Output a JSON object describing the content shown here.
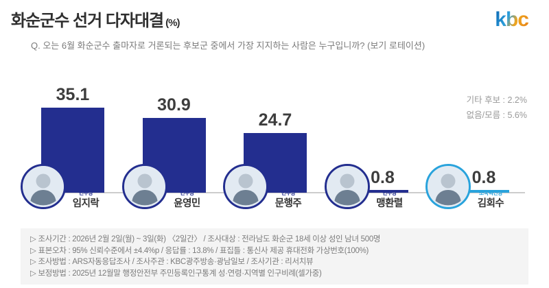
{
  "header": {
    "title": "화순군수 선거 다자대결",
    "title_unit": "(%)",
    "logo": "kbc",
    "question": "Q. 오는 6월 화순군수 출마자로 거론되는 후보군 중에서 가장 지지하는 사람은 누구입니까? (보기 로테이션)"
  },
  "side_notes": {
    "others": "기타 후보 : 2.2%",
    "none": "없음/모름 : 5.6%"
  },
  "candidates": [
    {
      "name": "임지락",
      "party": "민주당",
      "value": "35.1",
      "bar_color": "#232e8f",
      "party_color": "#232e8f"
    },
    {
      "name": "윤영민",
      "party": "민주당",
      "value": "30.9",
      "bar_color": "#232e8f",
      "party_color": "#232e8f"
    },
    {
      "name": "문행주",
      "party": "민주당",
      "value": "24.7",
      "bar_color": "#232e8f",
      "party_color": "#232e8f"
    },
    {
      "name": "맹환렬",
      "party": "민주당",
      "value": "0.8",
      "bar_color": "#232e8f",
      "party_color": "#232e8f"
    },
    {
      "name": "김회수",
      "party": "조국혁신당",
      "value": "0.8",
      "bar_color": "#29a3dc",
      "party_color": "#29a3dc"
    }
  ],
  "footnotes": [
    "▷ 조사기간 : 2026년 2월 2일(월) ~ 3일(화) 〈2일간〉 / 조사대상 : 전라남도 화순군 18세 이상 성인 남녀 500명",
    "▷ 표본오차 : 95% 신뢰수준에서 ±4.4%p / 응답률 : 13.8% / 표집틀 : 통신사 제공 휴대전화 가상번호(100%)",
    "▷ 조사방법 : ARS자동응답조사 / 조사주관 : KBC광주방송·광남일보 / 조사기관 : 리서치뷰",
    "▷ 보정방법 : 2025년 12월말 행정안전부 주민등록인구통계 성·연령·지역별 인구비례(셀가중)"
  ],
  "chart_data": {
    "type": "bar",
    "title": "화순군수 선거 다자대결 (%)",
    "categories": [
      "임지락",
      "윤영민",
      "문행주",
      "맹환렬",
      "김회수"
    ],
    "values": [
      35.1,
      30.9,
      24.7,
      0.8,
      0.8
    ],
    "parties": [
      "민주당",
      "민주당",
      "민주당",
      "민주당",
      "조국혁신당"
    ],
    "bar_colors": [
      "#232e8f",
      "#232e8f",
      "#232e8f",
      "#232e8f",
      "#29a3dc"
    ],
    "annotations": {
      "기타 후보": 2.2,
      "없음/모름": 5.6
    },
    "ylim": [
      0,
      40
    ],
    "grid": false,
    "legend": false
  }
}
